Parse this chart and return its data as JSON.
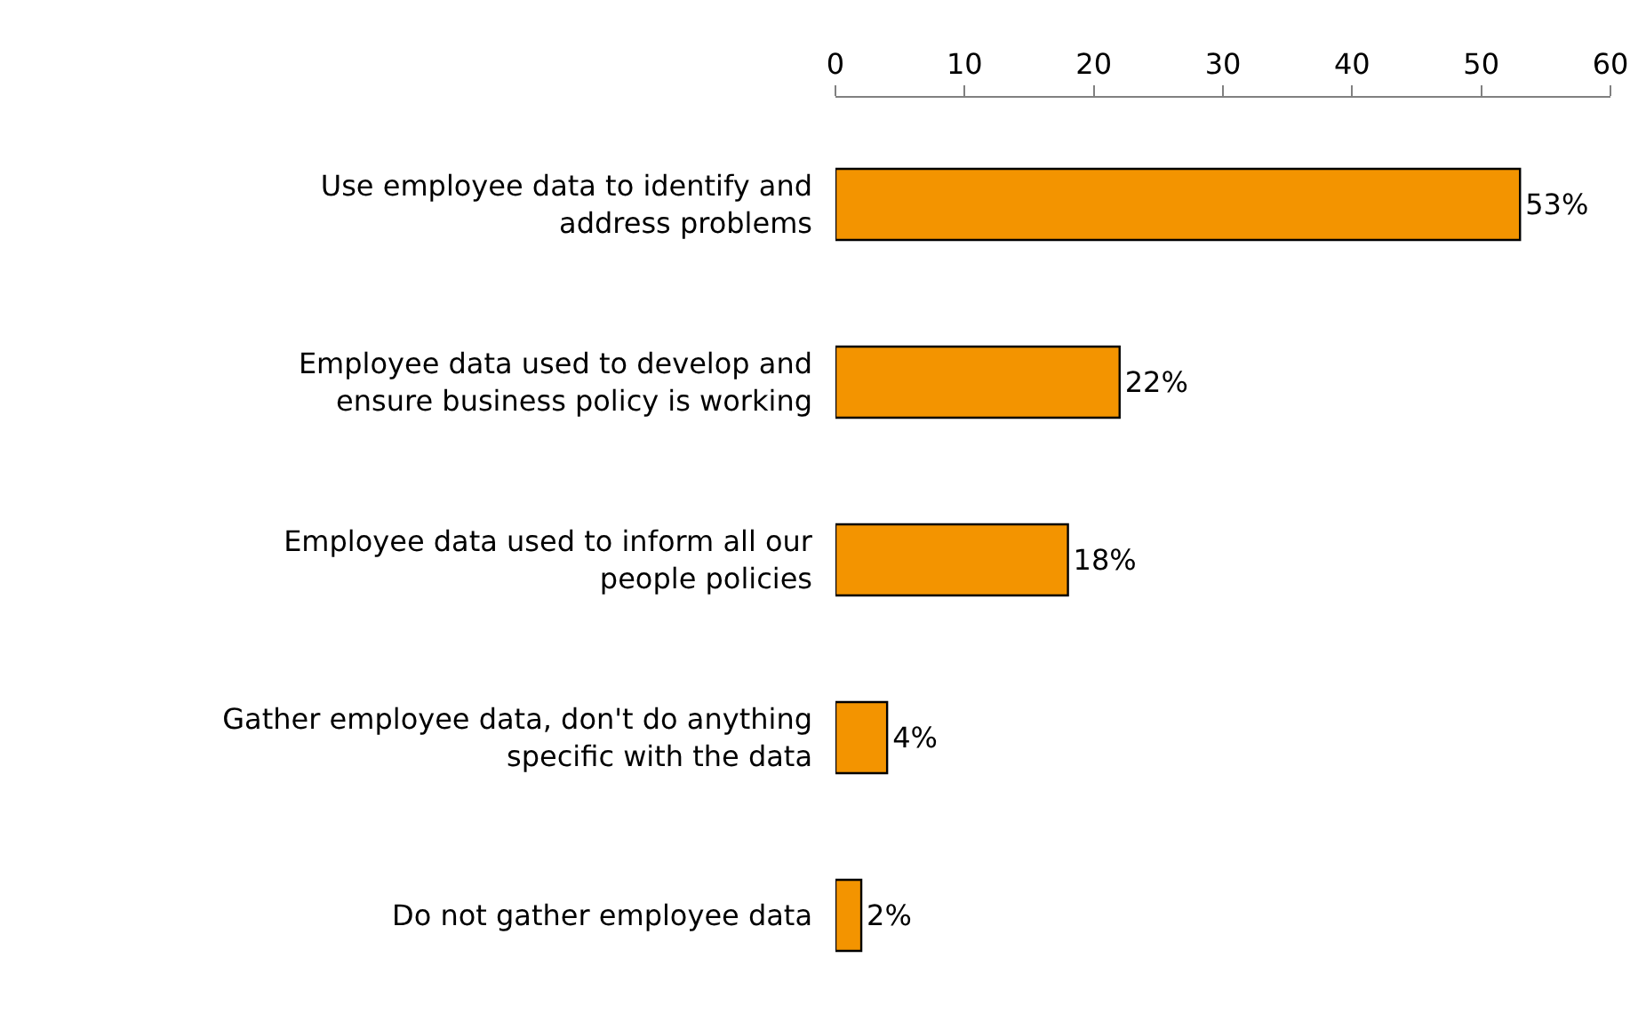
{
  "chart_data": {
    "type": "bar",
    "orientation": "horizontal",
    "categories": [
      "Use employee data to identify and\naddress problems",
      "Employee data used to develop and\nensure business policy is working",
      "Employee data used to inform all our\npeople policies",
      "Gather employee data, don't do anything\nspecific with the data",
      "Do not gather employee data"
    ],
    "values": [
      53,
      22,
      18,
      4,
      2
    ],
    "value_labels": [
      "53%",
      "22%",
      "18%",
      "4%",
      "2%"
    ],
    "color": "#f39400",
    "xlim": [
      0,
      60
    ],
    "xticks": [
      0,
      10,
      20,
      30,
      40,
      50,
      60
    ],
    "legend": false
  }
}
